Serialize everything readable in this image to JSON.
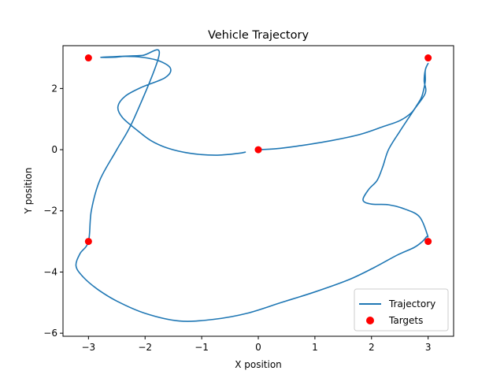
{
  "chart_data": {
    "type": "line",
    "title": "Vehicle Trajectory",
    "xlabel": "X position",
    "ylabel": "Y position",
    "xlim": [
      -3.45,
      3.45
    ],
    "ylim": [
      -6.1,
      3.4
    ],
    "xticks": [
      -3,
      -2,
      -1,
      0,
      1,
      2,
      3
    ],
    "xtick_labels": [
      "−3",
      "−2",
      "−1",
      "0",
      "1",
      "2",
      "3"
    ],
    "yticks": [
      -6,
      -4,
      -2,
      0,
      2
    ],
    "ytick_labels": [
      "−6",
      "−4",
      "−2",
      "0",
      "2"
    ],
    "grid": false,
    "legend_position": "lower-right",
    "series": [
      {
        "name": "Trajectory",
        "kind": "line",
        "color": "#1f77b4",
        "x": [
          -0.23,
          -0.35,
          -0.75,
          -1.2,
          -1.6,
          -1.9,
          -2.15,
          -2.4,
          -2.48,
          -2.35,
          -2.05,
          -1.65,
          -1.55,
          -1.75,
          -2.05,
          -2.35,
          -2.55,
          -2.78,
          -2.45,
          -2.05,
          -1.75,
          -2.2,
          -2.5,
          -2.8,
          -2.95,
          -3.0,
          -3.15,
          -3.22,
          -3.1,
          -2.85,
          -2.5,
          -2.0,
          -1.4,
          -0.8,
          -0.2,
          0.4,
          1.0,
          1.6,
          2.05,
          2.45,
          2.75,
          2.9,
          2.97,
          2.99,
          2.85,
          2.6,
          2.3,
          2.0,
          1.85,
          1.95,
          2.1,
          2.2,
          2.3,
          2.5,
          2.75,
          2.95,
          2.93,
          2.95,
          3.0,
          2.95,
          2.95,
          2.92,
          2.88,
          2.8,
          2.7,
          2.5,
          2.2,
          1.8,
          1.3,
          0.7,
          0.3,
          0.0
        ],
        "y": [
          -0.08,
          -0.12,
          -0.18,
          -0.12,
          0.05,
          0.3,
          0.65,
          1.05,
          1.4,
          1.75,
          2.05,
          2.35,
          2.65,
          2.9,
          3.02,
          3.05,
          3.02,
          3.02,
          3.05,
          3.08,
          3.12,
          1.0,
          0.0,
          -1.0,
          -2.0,
          -3.0,
          -3.4,
          -3.8,
          -4.15,
          -4.55,
          -4.95,
          -5.35,
          -5.6,
          -5.55,
          -5.35,
          -5.0,
          -4.65,
          -4.25,
          -3.85,
          -3.45,
          -3.2,
          -3.0,
          -2.85,
          -2.8,
          -2.2,
          -1.95,
          -1.8,
          -1.78,
          -1.65,
          -1.3,
          -1.0,
          -0.55,
          0.0,
          0.6,
          1.3,
          1.85,
          2.25,
          2.6,
          2.82,
          2.6,
          2.25,
          1.95,
          1.7,
          1.45,
          1.2,
          0.95,
          0.75,
          0.5,
          0.3,
          0.12,
          0.03,
          0.0
        ]
      },
      {
        "name": "Targets",
        "kind": "scatter",
        "color": "#ff0000",
        "x": [
          -3,
          3,
          0,
          -3,
          3
        ],
        "y": [
          3,
          3,
          0,
          -3,
          -3
        ]
      }
    ]
  }
}
